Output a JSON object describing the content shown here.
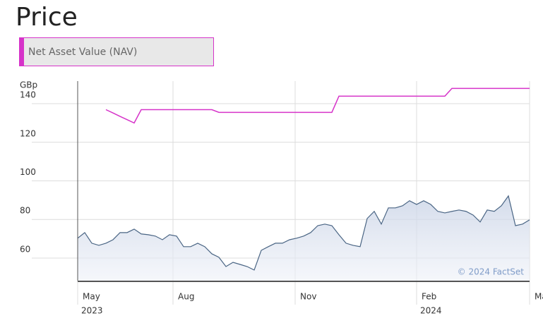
{
  "chart_data": {
    "type": "line",
    "title": "Price",
    "y_label": "GBp",
    "watermark": "© 2024 FactSet",
    "ylim": [
      48.3,
      151.7
    ],
    "yticks": [
      60,
      80,
      100,
      120,
      140
    ],
    "xlim": [
      0,
      64
    ],
    "xticks": [
      {
        "value": 0,
        "label": "May",
        "year": "2023"
      },
      {
        "value": 13.5,
        "label": "Aug"
      },
      {
        "value": 30.8,
        "label": "Nov"
      },
      {
        "value": 48,
        "label": "Feb",
        "year": "2024"
      },
      {
        "value": 64,
        "label": "May"
      }
    ],
    "grid": true,
    "series": [
      {
        "color": "#4a6584",
        "fill": true,
        "values": [
          70.3,
          73.2,
          67.7,
          66.6,
          67.7,
          69.5,
          73.2,
          73.2,
          75.0,
          72.5,
          72.1,
          71.4,
          69.5,
          72.1,
          71.4,
          65.9,
          65.9,
          67.7,
          65.9,
          62.2,
          60.4,
          55.6,
          57.8,
          56.7,
          55.6,
          53.8,
          64.0,
          65.9,
          67.7,
          67.7,
          69.5,
          70.3,
          71.4,
          73.2,
          76.8,
          77.6,
          76.8,
          72.1,
          67.7,
          66.6,
          65.9,
          80.5,
          84.2,
          77.6,
          86.0,
          86.0,
          87.1,
          89.7,
          87.8,
          89.7,
          87.8,
          84.2,
          83.4,
          84.2,
          84.9,
          84.2,
          82.3,
          78.7,
          84.9,
          84.2,
          87.1,
          92.2,
          76.8,
          77.6,
          79.8
        ]
      },
      {
        "name": "Net Asset Value (NAV)",
        "color": "#d633c9",
        "fill": false,
        "values": [
          null,
          null,
          null,
          null,
          136.9,
          135.2,
          133.4,
          131.7,
          130.0,
          136.9,
          136.9,
          136.9,
          136.9,
          136.9,
          136.9,
          136.9,
          136.9,
          136.9,
          136.9,
          136.9,
          135.5,
          135.5,
          135.5,
          135.5,
          135.5,
          135.5,
          135.5,
          135.5,
          135.5,
          135.5,
          135.5,
          135.5,
          135.5,
          135.5,
          135.5,
          135.5,
          135.5,
          143.9,
          143.9,
          143.9,
          143.9,
          143.9,
          143.9,
          143.9,
          143.9,
          143.9,
          143.9,
          143.9,
          143.9,
          143.9,
          143.9,
          143.9,
          143.9,
          147.9,
          147.9,
          147.9,
          147.9,
          147.9,
          147.9,
          147.9,
          147.9,
          147.9,
          147.9,
          147.9,
          147.9
        ]
      }
    ]
  }
}
